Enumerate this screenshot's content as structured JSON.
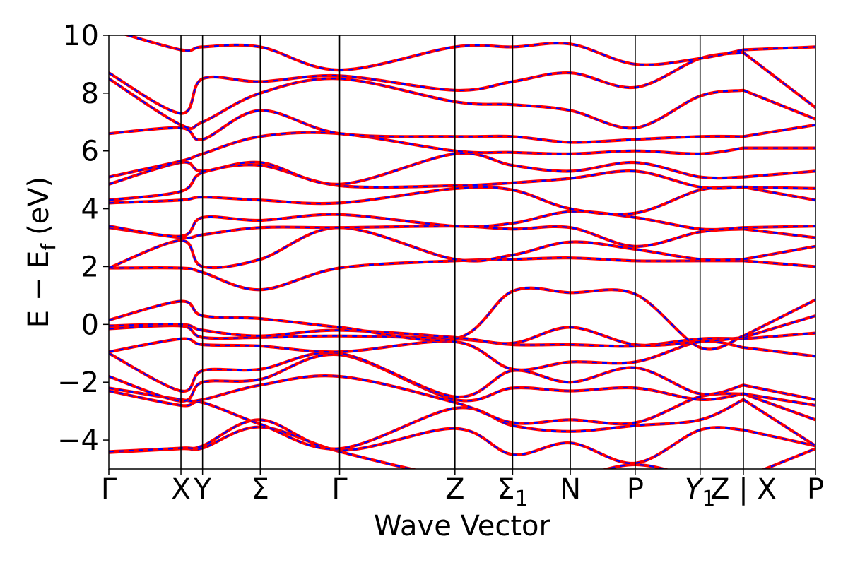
{
  "chart_data": {
    "type": "line",
    "xlabel": "Wave Vector",
    "ylabel_main": "E − E",
    "ylabel_sub": "f",
    "ylabel_unit": "(eV)",
    "ylim": [
      -5,
      10
    ],
    "yticks": [
      -4,
      -2,
      0,
      2,
      4,
      6,
      8,
      10
    ],
    "ytick_labels": [
      "−4",
      "−2",
      "0",
      "2",
      "4",
      "6",
      "8",
      "10"
    ],
    "xlim": [
      0,
      9.8
    ],
    "kpoints": [
      {
        "x": 0.0,
        "label": "Γ",
        "sub": ""
      },
      {
        "x": 1.0,
        "label": "X",
        "sub": ""
      },
      {
        "x": 1.3,
        "label": "Y",
        "sub": ""
      },
      {
        "x": 2.1,
        "label": "Σ",
        "sub": ""
      },
      {
        "x": 3.2,
        "label": "Γ",
        "sub": ""
      },
      {
        "x": 4.8,
        "label": "Z",
        "sub": ""
      },
      {
        "x": 5.6,
        "label": "Σ",
        "sub": "1"
      },
      {
        "x": 6.4,
        "label": "N",
        "sub": ""
      },
      {
        "x": 7.3,
        "label": "P",
        "sub": ""
      },
      {
        "x": 8.2,
        "label": "Y",
        "sub": "1",
        "italic": true
      },
      {
        "x": 8.8,
        "label": "Z | X",
        "sub": ""
      },
      {
        "x": 9.8,
        "label": "P",
        "sub": ""
      }
    ],
    "break_at": 8.8,
    "series": [
      {
        "color": "#ff0000",
        "style": "solid"
      },
      {
        "color": "#0000ff",
        "style": "dashed"
      }
    ],
    "bands": [
      [
        -4.43,
        -4.3,
        -4.28,
        -3.55,
        -4.4,
        -5.3,
        -5.3,
        -5.3,
        -4.85,
        -5.3,
        -5.3,
        -4.3,
        -5.1
      ],
      [
        -4.4,
        -4.28,
        -4.2,
        -3.3,
        -4.35,
        -3.6,
        -4.5,
        -4.1,
        -4.8,
        -3.65,
        -3.65,
        -4.2,
        -4.7
      ],
      [
        -2.3,
        -2.8,
        -2.7,
        -3.45,
        -4.3,
        -2.9,
        -3.5,
        -3.7,
        -3.5,
        -3.3,
        -2.6,
        -4.2,
        -3.4
      ],
      [
        -2.2,
        -2.6,
        -2.6,
        -2.1,
        -1.8,
        -2.7,
        -3.4,
        -3.3,
        -3.4,
        -2.5,
        -2.4,
        -3.3,
        -3.4
      ],
      [
        -1.8,
        -2.65,
        -2.0,
        -1.9,
        -1.05,
        -2.6,
        -2.2,
        -2.3,
        -2.2,
        -2.6,
        -2.4,
        -2.8,
        -2.2
      ],
      [
        -1.0,
        -2.3,
        -1.6,
        -1.55,
        -1.0,
        -2.5,
        -1.6,
        -2.0,
        -1.5,
        -2.4,
        -2.1,
        -2.6,
        -2.0
      ],
      [
        -0.95,
        -0.5,
        -0.7,
        -0.75,
        -0.95,
        -0.6,
        -1.55,
        -1.3,
        -1.3,
        -0.6,
        -0.8,
        -1.1,
        -0.8
      ],
      [
        -0.15,
        -0.05,
        -0.45,
        -0.45,
        -0.4,
        -0.5,
        -0.7,
        -0.7,
        -0.75,
        -0.5,
        -0.5,
        -0.3,
        -0.8
      ],
      [
        -0.05,
        0.0,
        -0.2,
        -0.4,
        -0.2,
        -0.45,
        -0.65,
        -0.1,
        -0.7,
        -0.6,
        -0.45,
        0.3,
        -0.7
      ],
      [
        0.15,
        0.8,
        0.3,
        0.2,
        -0.1,
        -0.5,
        1.15,
        1.1,
        1.05,
        -0.8,
        -0.4,
        0.85,
        1.1
      ],
      [
        1.95,
        1.95,
        1.8,
        1.2,
        1.95,
        2.2,
        2.25,
        2.3,
        2.2,
        2.2,
        2.2,
        2.0,
        2.15
      ],
      [
        1.95,
        2.9,
        2.0,
        2.25,
        3.35,
        2.25,
        2.4,
        2.85,
        2.6,
        2.25,
        2.25,
        2.7,
        2.7
      ],
      [
        3.35,
        3.0,
        3.1,
        3.35,
        3.35,
        3.4,
        3.3,
        3.35,
        2.7,
        3.2,
        3.3,
        3.0,
        3.3
      ],
      [
        3.4,
        3.05,
        3.7,
        3.6,
        3.8,
        3.4,
        3.5,
        3.9,
        3.7,
        3.3,
        3.35,
        3.4,
        3.6
      ],
      [
        4.2,
        4.3,
        4.4,
        4.3,
        4.2,
        4.7,
        4.65,
        4.0,
        3.85,
        4.65,
        4.75,
        4.3,
        3.9
      ],
      [
        4.3,
        4.6,
        5.25,
        5.5,
        4.8,
        4.8,
        4.9,
        5.05,
        5.3,
        4.75,
        4.75,
        4.7,
        5.4
      ],
      [
        4.85,
        5.6,
        5.3,
        5.6,
        4.85,
        5.9,
        5.5,
        5.3,
        5.6,
        5.1,
        5.1,
        5.3,
        5.4
      ],
      [
        5.1,
        5.65,
        5.9,
        6.5,
        6.6,
        6.0,
        5.95,
        5.9,
        6.0,
        5.9,
        6.1,
        6.1,
        6.0
      ],
      [
        6.6,
        6.8,
        6.4,
        7.4,
        6.6,
        6.5,
        6.5,
        6.3,
        6.4,
        6.5,
        6.5,
        6.9,
        6.8
      ],
      [
        8.5,
        6.9,
        7.0,
        8.0,
        8.5,
        7.7,
        7.6,
        7.4,
        6.8,
        7.9,
        8.1,
        7.1,
        7.5
      ],
      [
        8.7,
        7.3,
        8.5,
        8.4,
        8.6,
        8.1,
        8.4,
        8.7,
        8.2,
        9.2,
        9.4,
        7.5,
        8.6
      ],
      [
        10.2,
        9.5,
        9.6,
        9.6,
        8.8,
        9.6,
        9.6,
        9.7,
        9.0,
        9.2,
        9.5,
        9.6,
        9.5
      ]
    ]
  }
}
